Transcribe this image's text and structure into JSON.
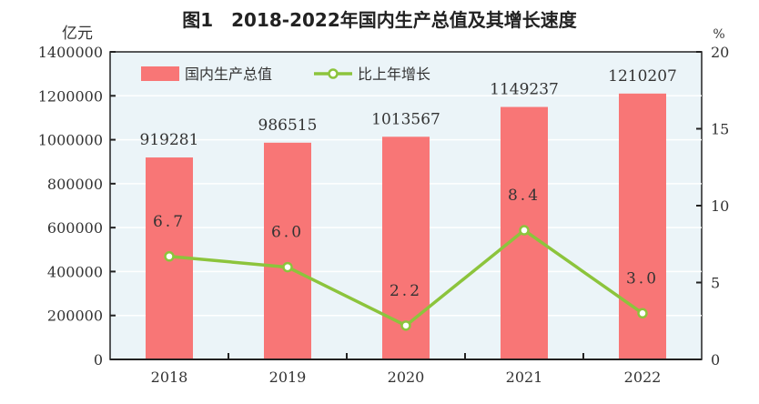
{
  "chart_data": {
    "type": "bar+line",
    "title": "图1　2018-2022年国内生产总值及其增长速度",
    "categories": [
      "2018",
      "2019",
      "2020",
      "2021",
      "2022"
    ],
    "left_axis": {
      "label": "亿元",
      "range": [
        0,
        1400000
      ],
      "ticks": [
        0,
        200000,
        400000,
        600000,
        800000,
        1000000,
        1200000,
        1400000
      ]
    },
    "right_axis": {
      "label": "%",
      "range": [
        0,
        20
      ],
      "ticks": [
        0,
        5,
        10,
        15,
        20
      ]
    },
    "series": [
      {
        "name": "国内生产总值",
        "type": "bar",
        "axis": "left",
        "values": [
          919281,
          986515,
          1013567,
          1149237,
          1210207
        ],
        "labels": [
          "919281",
          "986515",
          "1013567",
          "1149237",
          "1210207"
        ],
        "color": "#f87676"
      },
      {
        "name": "比上年增长",
        "type": "line",
        "axis": "right",
        "values": [
          6.7,
          6.0,
          2.2,
          8.4,
          3.0
        ],
        "labels": [
          "6.7",
          "6.0",
          "2.2",
          "8.4",
          "3.0"
        ],
        "color": "#8cc43c"
      }
    ],
    "grid": true,
    "legend": "top-left",
    "background": "#ebf4f8"
  }
}
